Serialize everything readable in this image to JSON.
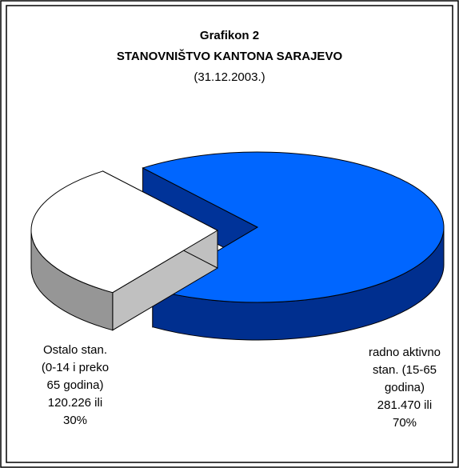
{
  "chart_data": {
    "type": "pie3d",
    "title": "Grafikon 2",
    "subtitle": "STANOVNIŠTVO KANTONA SARAJEVO",
    "date": "(31.12.2003.)",
    "categories": [
      "radno aktivno stan. (15-65 godina)",
      "Ostalo stan. (0-14 i preko 65 godina)"
    ],
    "values": [
      281470,
      120226
    ],
    "value_labels": [
      "281.470 ili 70%",
      "120.226 ili 30%"
    ],
    "colors": [
      "#0066ff",
      "#ffffff"
    ]
  }
}
